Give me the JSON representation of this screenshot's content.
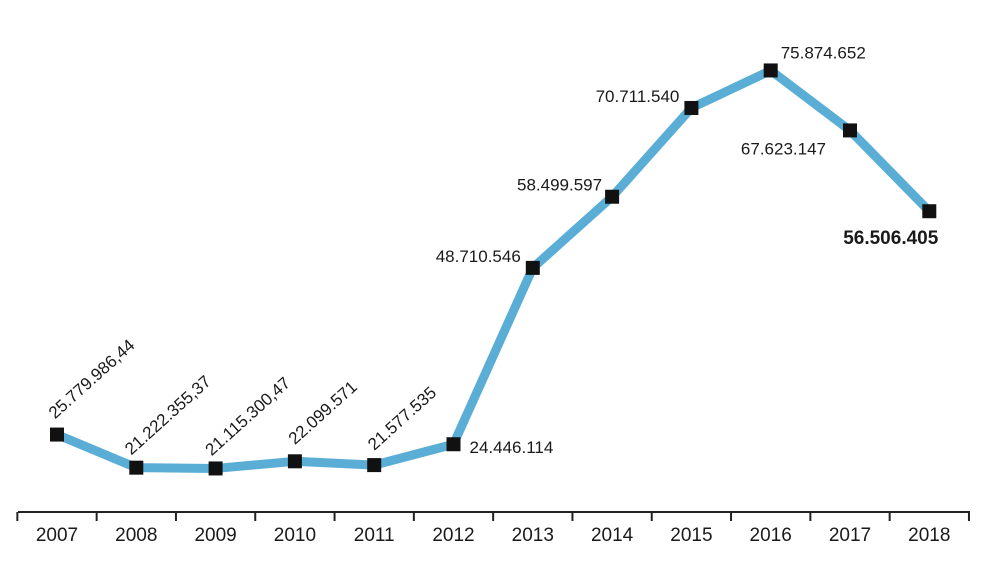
{
  "chart_data": {
    "type": "line",
    "title": "",
    "xlabel": "",
    "ylabel": "",
    "categories": [
      "2007",
      "2008",
      "2009",
      "2010",
      "2011",
      "2012",
      "2013",
      "2014",
      "2015",
      "2016",
      "2017",
      "2018"
    ],
    "values": [
      25779986.44,
      21222355.37,
      21115300.47,
      22099571,
      21577535,
      24446114,
      48710546,
      58499597,
      70711540,
      75874652,
      67623147,
      56506405
    ],
    "value_labels": [
      "25.779.986,44",
      "21.222.355,37",
      "21.115.300,47",
      "22.099.571",
      "21.577.535",
      "24.446.114",
      "48.710.546",
      "58.499.597",
      "70.711.540",
      "75.874.652",
      "67.623.147",
      "56.506.405"
    ],
    "ylim": [
      16500000,
      78000000
    ],
    "grid": false,
    "highlighted_label_index": 11,
    "colors": {
      "line": "#5aaed6",
      "marker": "#111111",
      "axis": "#222222",
      "text": "#1a1a1a"
    }
  }
}
